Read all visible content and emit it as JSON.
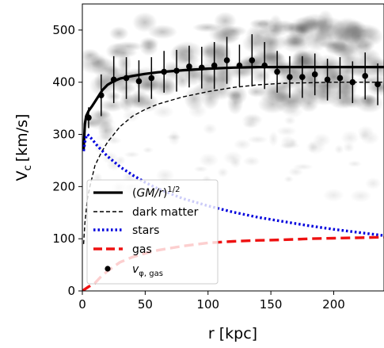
{
  "chart_data": {
    "type": "scatter",
    "xlabel": "r [kpc]",
    "ylabel_main": "V",
    "ylabel_sub": "c",
    "ylabel_unit": "[km/s]",
    "xlim": [
      0,
      240
    ],
    "ylim": [
      0,
      550
    ],
    "x_ticks": [
      0,
      50,
      100,
      150,
      200
    ],
    "y_ticks": [
      0,
      100,
      200,
      300,
      400,
      500
    ],
    "grid": false,
    "legend_position": "lower-left",
    "legend": [
      {
        "key": "total",
        "style": "solid-black",
        "label_parts": [
          "(",
          "GM/r",
          ")",
          "1/2"
        ]
      },
      {
        "key": "dm",
        "style": "dashed-black",
        "label_parts": [
          "dark matter"
        ]
      },
      {
        "key": "stars",
        "style": "dotted-blue",
        "label_parts": [
          "stars"
        ]
      },
      {
        "key": "gas",
        "style": "dashed-red",
        "label_parts": [
          "gas"
        ]
      },
      {
        "key": "vphi",
        "style": "marker-black",
        "label_parts": [
          "v",
          "φ, gas"
        ]
      }
    ],
    "colors": {
      "total": "#000000",
      "dm": "#000000",
      "stars": "#0000dd",
      "gas": "#ee1111",
      "points": "#000000",
      "cloud": "#555555"
    },
    "series": [
      {
        "key": "total",
        "x": [
          1,
          2,
          3,
          5,
          8,
          12,
          16,
          20,
          25,
          30,
          40,
          50,
          60,
          80,
          100,
          120,
          140,
          160,
          180,
          200,
          220,
          240
        ],
        "y": [
          270,
          320,
          335,
          345,
          355,
          370,
          385,
          395,
          402,
          407,
          412,
          416,
          419,
          423,
          426,
          428,
          429,
          429,
          429,
          429,
          429,
          429
        ]
      },
      {
        "key": "dm",
        "x": [
          1,
          2,
          4,
          6,
          10,
          15,
          20,
          30,
          40,
          50,
          60,
          80,
          100,
          120,
          140,
          160,
          180,
          200,
          220,
          240
        ],
        "y": [
          90,
          130,
          175,
          200,
          240,
          265,
          285,
          315,
          335,
          348,
          358,
          372,
          382,
          390,
          395,
          398,
          399,
          400,
          400,
          400
        ]
      },
      {
        "key": "stars",
        "x": [
          1,
          2,
          3,
          4,
          5,
          8,
          12,
          16,
          20,
          30,
          40,
          50,
          60,
          80,
          100,
          120,
          140,
          160,
          180,
          200,
          220,
          240
        ],
        "y": [
          268,
          285,
          295,
          300,
          298,
          290,
          278,
          268,
          258,
          238,
          222,
          208,
          196,
          177,
          163,
          151,
          141,
          133,
          125,
          118,
          112,
          106
        ]
      },
      {
        "key": "gas",
        "x": [
          0,
          5,
          10,
          15,
          20,
          30,
          40,
          50,
          60,
          80,
          100,
          120,
          140,
          160,
          180,
          200,
          220,
          240
        ],
        "y": [
          0,
          8,
          15,
          28,
          38,
          55,
          65,
          72,
          78,
          86,
          92,
          95,
          97,
          98,
          100,
          101,
          102,
          103
        ]
      }
    ],
    "vphi_gas": {
      "x": [
        5,
        15,
        25,
        35,
        45,
        55,
        65,
        75,
        85,
        95,
        105,
        115,
        125,
        135,
        145,
        155,
        165,
        175,
        185,
        195,
        205,
        215,
        225,
        235
      ],
      "y": [
        332,
        375,
        405,
        408,
        402,
        408,
        420,
        422,
        430,
        428,
        432,
        442,
        432,
        442,
        432,
        420,
        410,
        410,
        415,
        405,
        408,
        400,
        412,
        396
      ],
      "err": [
        20,
        40,
        45,
        40,
        40,
        40,
        40,
        40,
        40,
        40,
        45,
        45,
        40,
        50,
        45,
        40,
        40,
        40,
        40,
        40,
        40,
        40,
        45,
        40
      ]
    }
  }
}
